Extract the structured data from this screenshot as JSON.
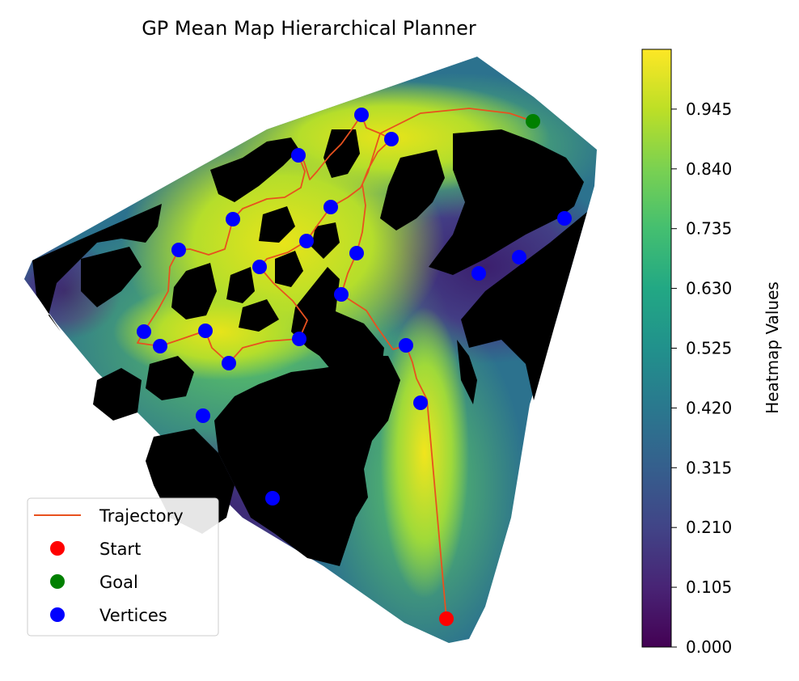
{
  "chart_data": {
    "type": "heatmap",
    "title": "GP Mean Map Hierarchical Planner",
    "colorbar": {
      "label": "Heatmap Values",
      "colormap": "viridis",
      "range": [
        0.0,
        1.05
      ],
      "ticks": [
        "0.945",
        "0.840",
        "0.735",
        "0.630",
        "0.525",
        "0.420",
        "0.315",
        "0.210",
        "0.105",
        "0.000"
      ],
      "tick_values": [
        0.945,
        0.84,
        0.735,
        0.63,
        0.525,
        0.42,
        0.315,
        0.21,
        0.105,
        0.0
      ]
    },
    "legend": {
      "placement": "lower-left",
      "entries": [
        {
          "label": "Trajectory",
          "marker": "line",
          "color": "#e8511e"
        },
        {
          "label": "Start",
          "marker": "dot",
          "color": "#ff0000"
        },
        {
          "label": "Goal",
          "marker": "dot",
          "color": "#008000"
        },
        {
          "label": "Vertices",
          "marker": "dot",
          "color": "#0000ff"
        }
      ]
    },
    "axes_visible": false,
    "start": [
      552,
      765
    ],
    "goal": [
      659,
      150
    ],
    "vertices": [
      [
        447,
        142
      ],
      [
        484,
        172
      ],
      [
        369,
        192
      ],
      [
        409,
        256
      ],
      [
        288,
        271
      ],
      [
        379,
        298
      ],
      [
        221,
        309
      ],
      [
        441,
        313
      ],
      [
        321,
        330
      ],
      [
        422,
        364
      ],
      [
        592,
        338
      ],
      [
        642,
        318
      ],
      [
        698,
        270
      ],
      [
        178,
        410
      ],
      [
        198,
        428
      ],
      [
        254,
        409
      ],
      [
        283,
        449
      ],
      [
        370,
        419
      ],
      [
        502,
        427
      ],
      [
        520,
        498
      ],
      [
        251,
        514
      ],
      [
        337,
        616
      ]
    ],
    "trajectory": [
      [
        552,
        765
      ],
      [
        528,
        494
      ],
      [
        515,
        468
      ],
      [
        510,
        448
      ],
      [
        502,
        427
      ],
      [
        486,
        432
      ],
      [
        466,
        404
      ],
      [
        453,
        384
      ],
      [
        422,
        364
      ],
      [
        430,
        338
      ],
      [
        441,
        313
      ],
      [
        448,
        287
      ],
      [
        452,
        254
      ],
      [
        448,
        228
      ],
      [
        455,
        210
      ],
      [
        467,
        188
      ],
      [
        484,
        172
      ],
      [
        470,
        165
      ],
      [
        453,
        158
      ],
      [
        447,
        142
      ],
      [
        435,
        160
      ],
      [
        422,
        178
      ],
      [
        408,
        192
      ],
      [
        392,
        212
      ],
      [
        383,
        222
      ],
      [
        376,
        200
      ],
      [
        369,
        192
      ],
      [
        377,
        212
      ],
      [
        372,
        232
      ],
      [
        352,
        244
      ],
      [
        330,
        246
      ],
      [
        300,
        258
      ],
      [
        288,
        271
      ],
      [
        283,
        290
      ],
      [
        278,
        308
      ],
      [
        258,
        315
      ],
      [
        235,
        308
      ],
      [
        221,
        309
      ],
      [
        210,
        330
      ],
      [
        208,
        360
      ],
      [
        196,
        382
      ],
      [
        178,
        410
      ],
      [
        170,
        424
      ],
      [
        198,
        428
      ],
      [
        222,
        420
      ],
      [
        254,
        409
      ],
      [
        262,
        430
      ],
      [
        283,
        449
      ],
      [
        300,
        430
      ],
      [
        330,
        422
      ],
      [
        370,
        419
      ],
      [
        380,
        396
      ],
      [
        362,
        372
      ],
      [
        338,
        350
      ],
      [
        321,
        330
      ],
      [
        330,
        320
      ],
      [
        356,
        312
      ],
      [
        379,
        298
      ],
      [
        395,
        275
      ],
      [
        409,
        256
      ],
      [
        430,
        244
      ],
      [
        446,
        232
      ],
      [
        455,
        213
      ],
      [
        470,
        165
      ],
      [
        520,
        140
      ],
      [
        580,
        134
      ],
      [
        630,
        140
      ],
      [
        659,
        150
      ]
    ]
  }
}
